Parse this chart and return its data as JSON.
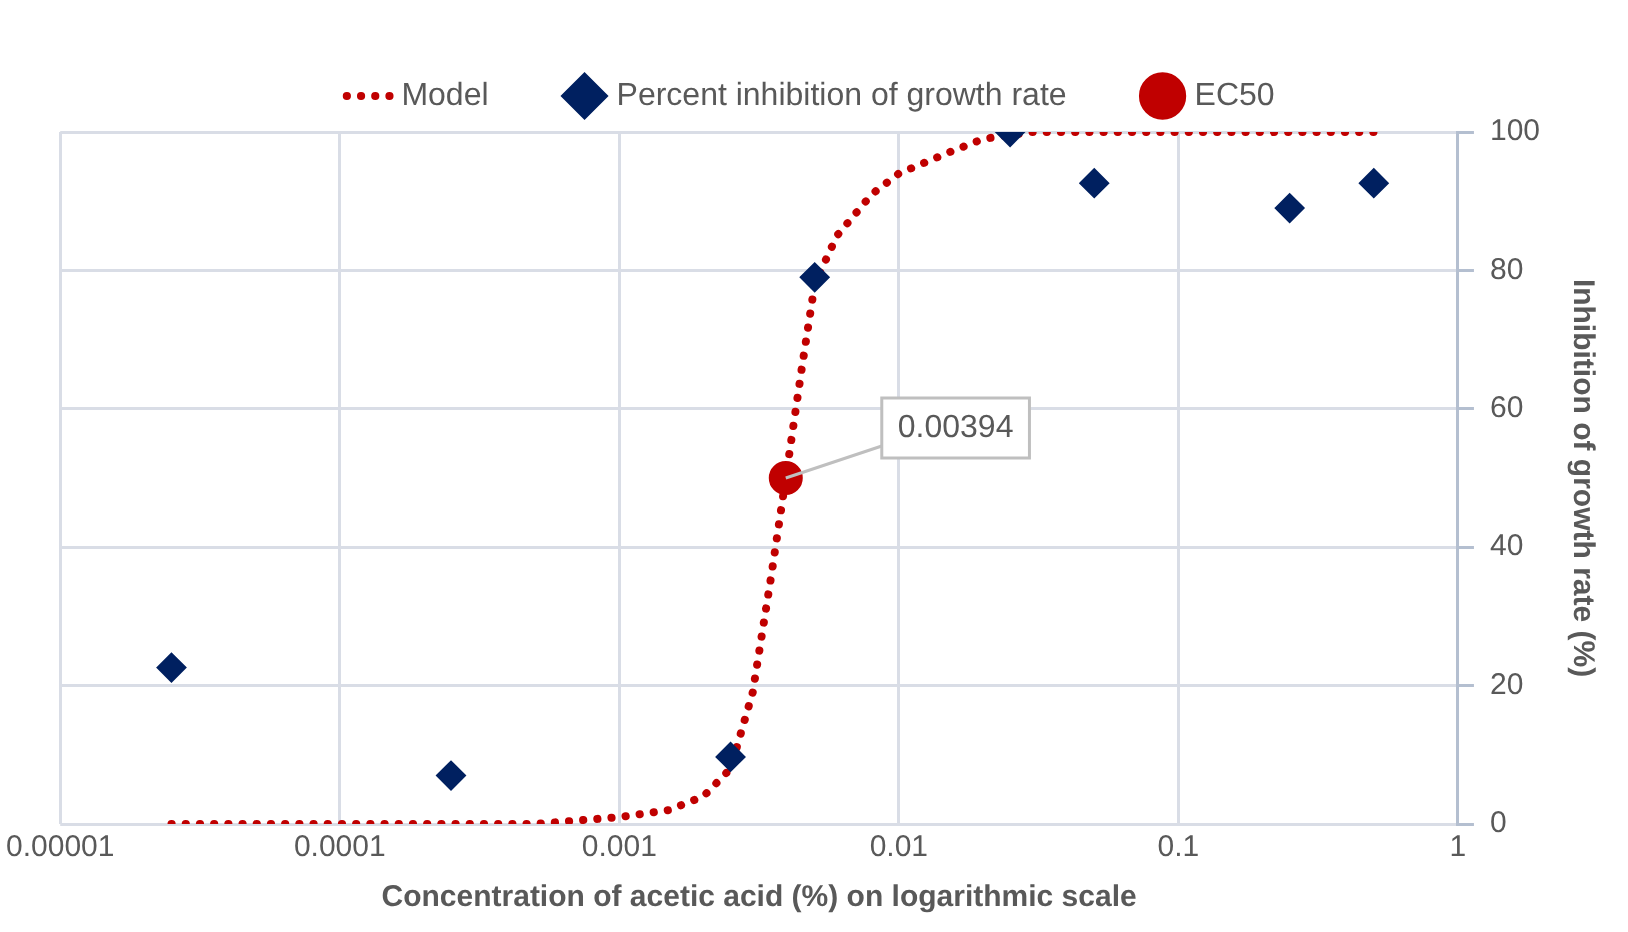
{
  "chart_data": {
    "type": "scatter",
    "xlabel": "Concentration of acetic acid (%) on logarithmic scale",
    "ylabel": "Inhibition of growth rate (%)",
    "log": "x",
    "grid": true,
    "legend": "top",
    "xlim": [
      1e-05,
      1
    ],
    "xticks": [
      {
        "value": 1e-05,
        "label": "0.00001"
      },
      {
        "value": 0.0001,
        "label": "0.0001"
      },
      {
        "value": 0.001,
        "label": "0.001"
      },
      {
        "value": 0.01,
        "label": "0.01"
      },
      {
        "value": 0.1,
        "label": "0.1"
      },
      {
        "value": 1,
        "label": "1"
      }
    ],
    "ylim": [
      0,
      100
    ],
    "yticks": [
      0,
      20,
      40,
      60,
      80,
      100
    ],
    "series": [
      {
        "name": "Model",
        "type": "line",
        "color": "#c00000",
        "line_style": "dotted",
        "marker": "none",
        "x": [
          2.5e-05,
          0.0001,
          0.0005,
          0.001,
          0.0015,
          0.002,
          0.0025,
          0.003,
          0.0035,
          0.00394,
          0.0045,
          0.005,
          0.006,
          0.008,
          0.01,
          0.015,
          0.02,
          0.03,
          0.05,
          0.1,
          0.5
        ],
        "values": [
          0,
          0,
          0,
          1,
          2,
          4,
          8,
          19,
          36,
          50,
          66,
          78,
          85,
          91,
          94,
          97,
          99,
          100,
          100,
          100,
          100
        ]
      },
      {
        "name": "Percent inhibition of growth rate",
        "color": "#002060",
        "marker": "diamond",
        "x": [
          2.5e-05,
          0.00025,
          0.0025,
          0.005,
          0.025,
          0.05,
          0.25,
          0.5
        ],
        "values": [
          22.6,
          7,
          9.7,
          79,
          100,
          92.6,
          89,
          92.6
        ]
      },
      {
        "name": "EC50",
        "color": "#c00000",
        "marker": "circle",
        "x": [
          0.00394
        ],
        "values": [
          50
        ]
      }
    ],
    "annotations": [
      {
        "text": "0.00394",
        "x": 0.00394,
        "y": 50
      }
    ]
  }
}
